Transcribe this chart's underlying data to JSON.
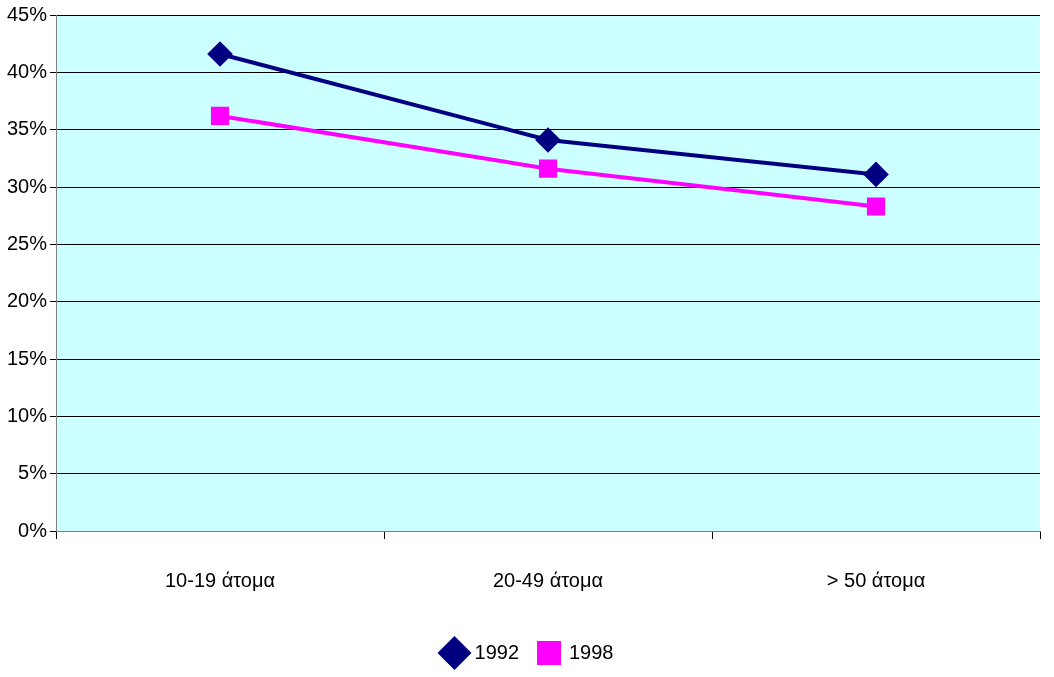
{
  "chart_data": {
    "type": "line",
    "categories": [
      "10-19 άτομα",
      "20-49 άτομα",
      "> 50 άτομα"
    ],
    "series": [
      {
        "name": "1992",
        "color": "#000080",
        "marker": "diamond",
        "values": [
          41.6,
          34.1,
          31.1
        ]
      },
      {
        "name": "1998",
        "color": "#ff00ff",
        "marker": "square",
        "values": [
          36.2,
          31.6,
          28.3
        ]
      }
    ],
    "ylim": [
      0,
      45
    ],
    "yticks": [
      {
        "value": 0,
        "label": "0%"
      },
      {
        "value": 5,
        "label": "5%"
      },
      {
        "value": 10,
        "label": "10%"
      },
      {
        "value": 15,
        "label": "15%"
      },
      {
        "value": 20,
        "label": "20%"
      },
      {
        "value": 25,
        "label": "25%"
      },
      {
        "value": 30,
        "label": "30%"
      },
      {
        "value": 35,
        "label": "35%"
      },
      {
        "value": 40,
        "label": "40%"
      },
      {
        "value": 45,
        "label": "45%"
      }
    ],
    "grid": "y",
    "legend": "bottom",
    "line_style": "solid"
  }
}
